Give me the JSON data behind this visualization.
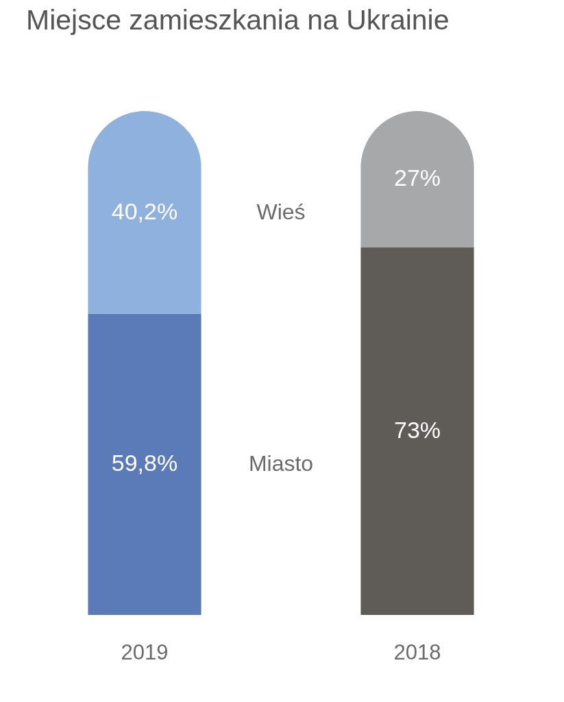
{
  "chart_data": {
    "type": "bar",
    "title": "Miejsce zamieszkania na Ukrainie",
    "stacked": true,
    "data_labels": true,
    "legend": false,
    "categories": [
      "2019",
      "2018"
    ],
    "series": [
      {
        "name": "Miasto",
        "colors": [
          "#5b7bb8",
          "#5f5b57"
        ],
        "values": [
          59.8,
          73
        ],
        "value_labels": [
          "59,8%",
          "73%"
        ]
      },
      {
        "name": "Wieś",
        "colors": [
          "#8fb1de",
          "#a7a8aa"
        ],
        "values": [
          40.2,
          27
        ],
        "value_labels": [
          "40,2%",
          "27%"
        ]
      }
    ]
  }
}
